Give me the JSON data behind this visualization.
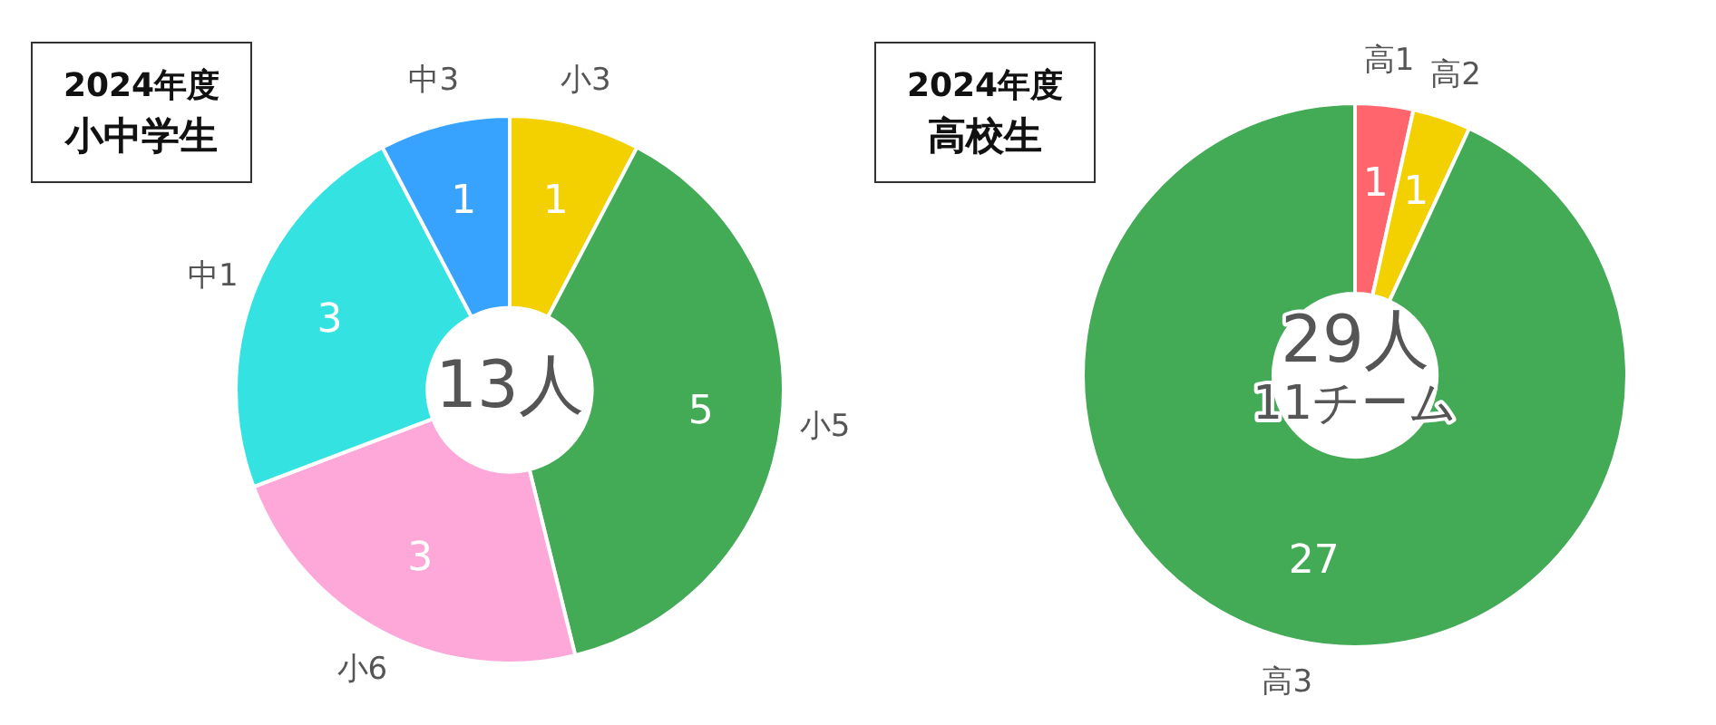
{
  "chart_data": [
    {
      "type": "donut",
      "title": "2024年度",
      "subtitle": "小中学生",
      "categories": [
        "小3",
        "小5",
        "小6",
        "中1",
        "中3"
      ],
      "values": [
        1,
        5,
        3,
        3,
        1
      ],
      "colors": [
        "#f3d100",
        "#43aa55",
        "#fda8d8",
        "#35e2e2",
        "#38a3ff"
      ],
      "data_labels": true,
      "legend": false,
      "annotations": [
        "13人"
      ]
    },
    {
      "type": "donut",
      "title": "2024年度",
      "subtitle": "高校生",
      "categories": [
        "高1",
        "高2",
        "高3"
      ],
      "values": [
        1,
        1,
        27
      ],
      "colors": [
        "#ff656c",
        "#f3d100",
        "#43aa55"
      ],
      "data_labels": true,
      "legend": false,
      "annotations": [
        "29人",
        "11チーム"
      ]
    }
  ]
}
